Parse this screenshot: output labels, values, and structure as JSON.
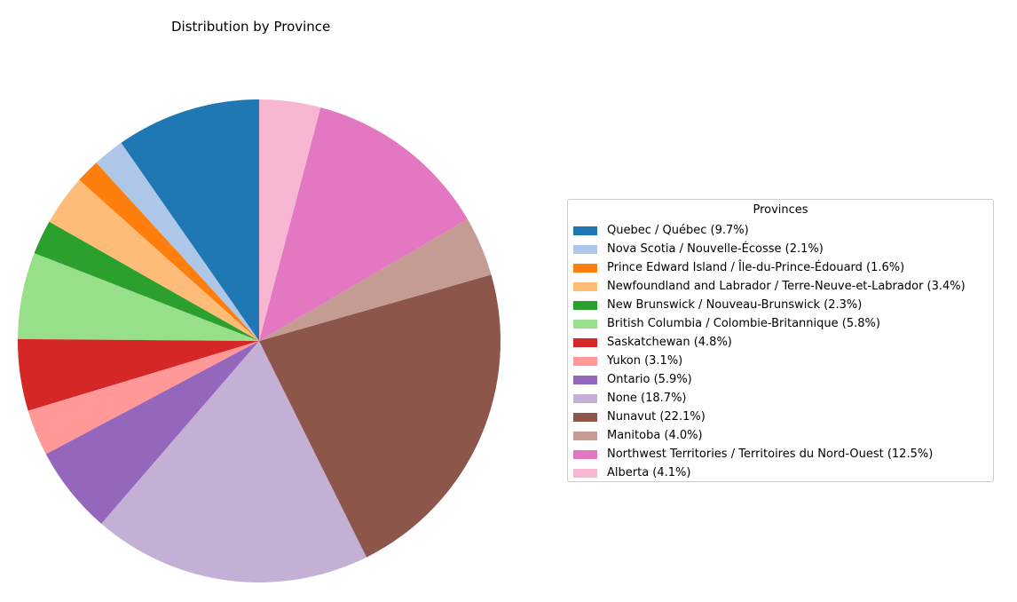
{
  "chart_data": {
    "type": "pie",
    "title": "Distribution by Province",
    "start_angle_deg": 90,
    "direction": "counterclockwise",
    "legend": {
      "title": "Provinces",
      "placement": "right"
    },
    "slices": [
      {
        "label": "Quebec / Québec (9.7%)",
        "value": 9.7,
        "color": "#1f77b4"
      },
      {
        "label": "Nova Scotia / Nouvelle-Écosse (2.1%)",
        "value": 2.1,
        "color": "#aec7e8"
      },
      {
        "label": "Prince Edward Island / Île-du-Prince-Édouard (1.6%)",
        "value": 1.6,
        "color": "#ff7f0e"
      },
      {
        "label": "Newfoundland and Labrador / Terre-Neuve-et-Labrador (3.4%)",
        "value": 3.4,
        "color": "#ffbb78"
      },
      {
        "label": "New Brunswick / Nouveau-Brunswick (2.3%)",
        "value": 2.3,
        "color": "#2ca02c"
      },
      {
        "label": "British Columbia / Colombie-Britannique (5.8%)",
        "value": 5.8,
        "color": "#98df8a"
      },
      {
        "label": "Saskatchewan (4.8%)",
        "value": 4.8,
        "color": "#d62728"
      },
      {
        "label": "Yukon (3.1%)",
        "value": 3.1,
        "color": "#ff9896"
      },
      {
        "label": "Ontario (5.9%)",
        "value": 5.9,
        "color": "#9467bd"
      },
      {
        "label": "None (18.7%)",
        "value": 18.7,
        "color": "#c5b0d5"
      },
      {
        "label": "Nunavut (22.1%)",
        "value": 22.1,
        "color": "#8c564b"
      },
      {
        "label": "Manitoba (4.0%)",
        "value": 4.0,
        "color": "#c49c94"
      },
      {
        "label": "Northwest Territories / Territoires du Nord-Ouest (12.5%)",
        "value": 12.5,
        "color": "#e377c2"
      },
      {
        "label": "Alberta (4.1%)",
        "value": 4.1,
        "color": "#f7b6d2"
      }
    ]
  }
}
